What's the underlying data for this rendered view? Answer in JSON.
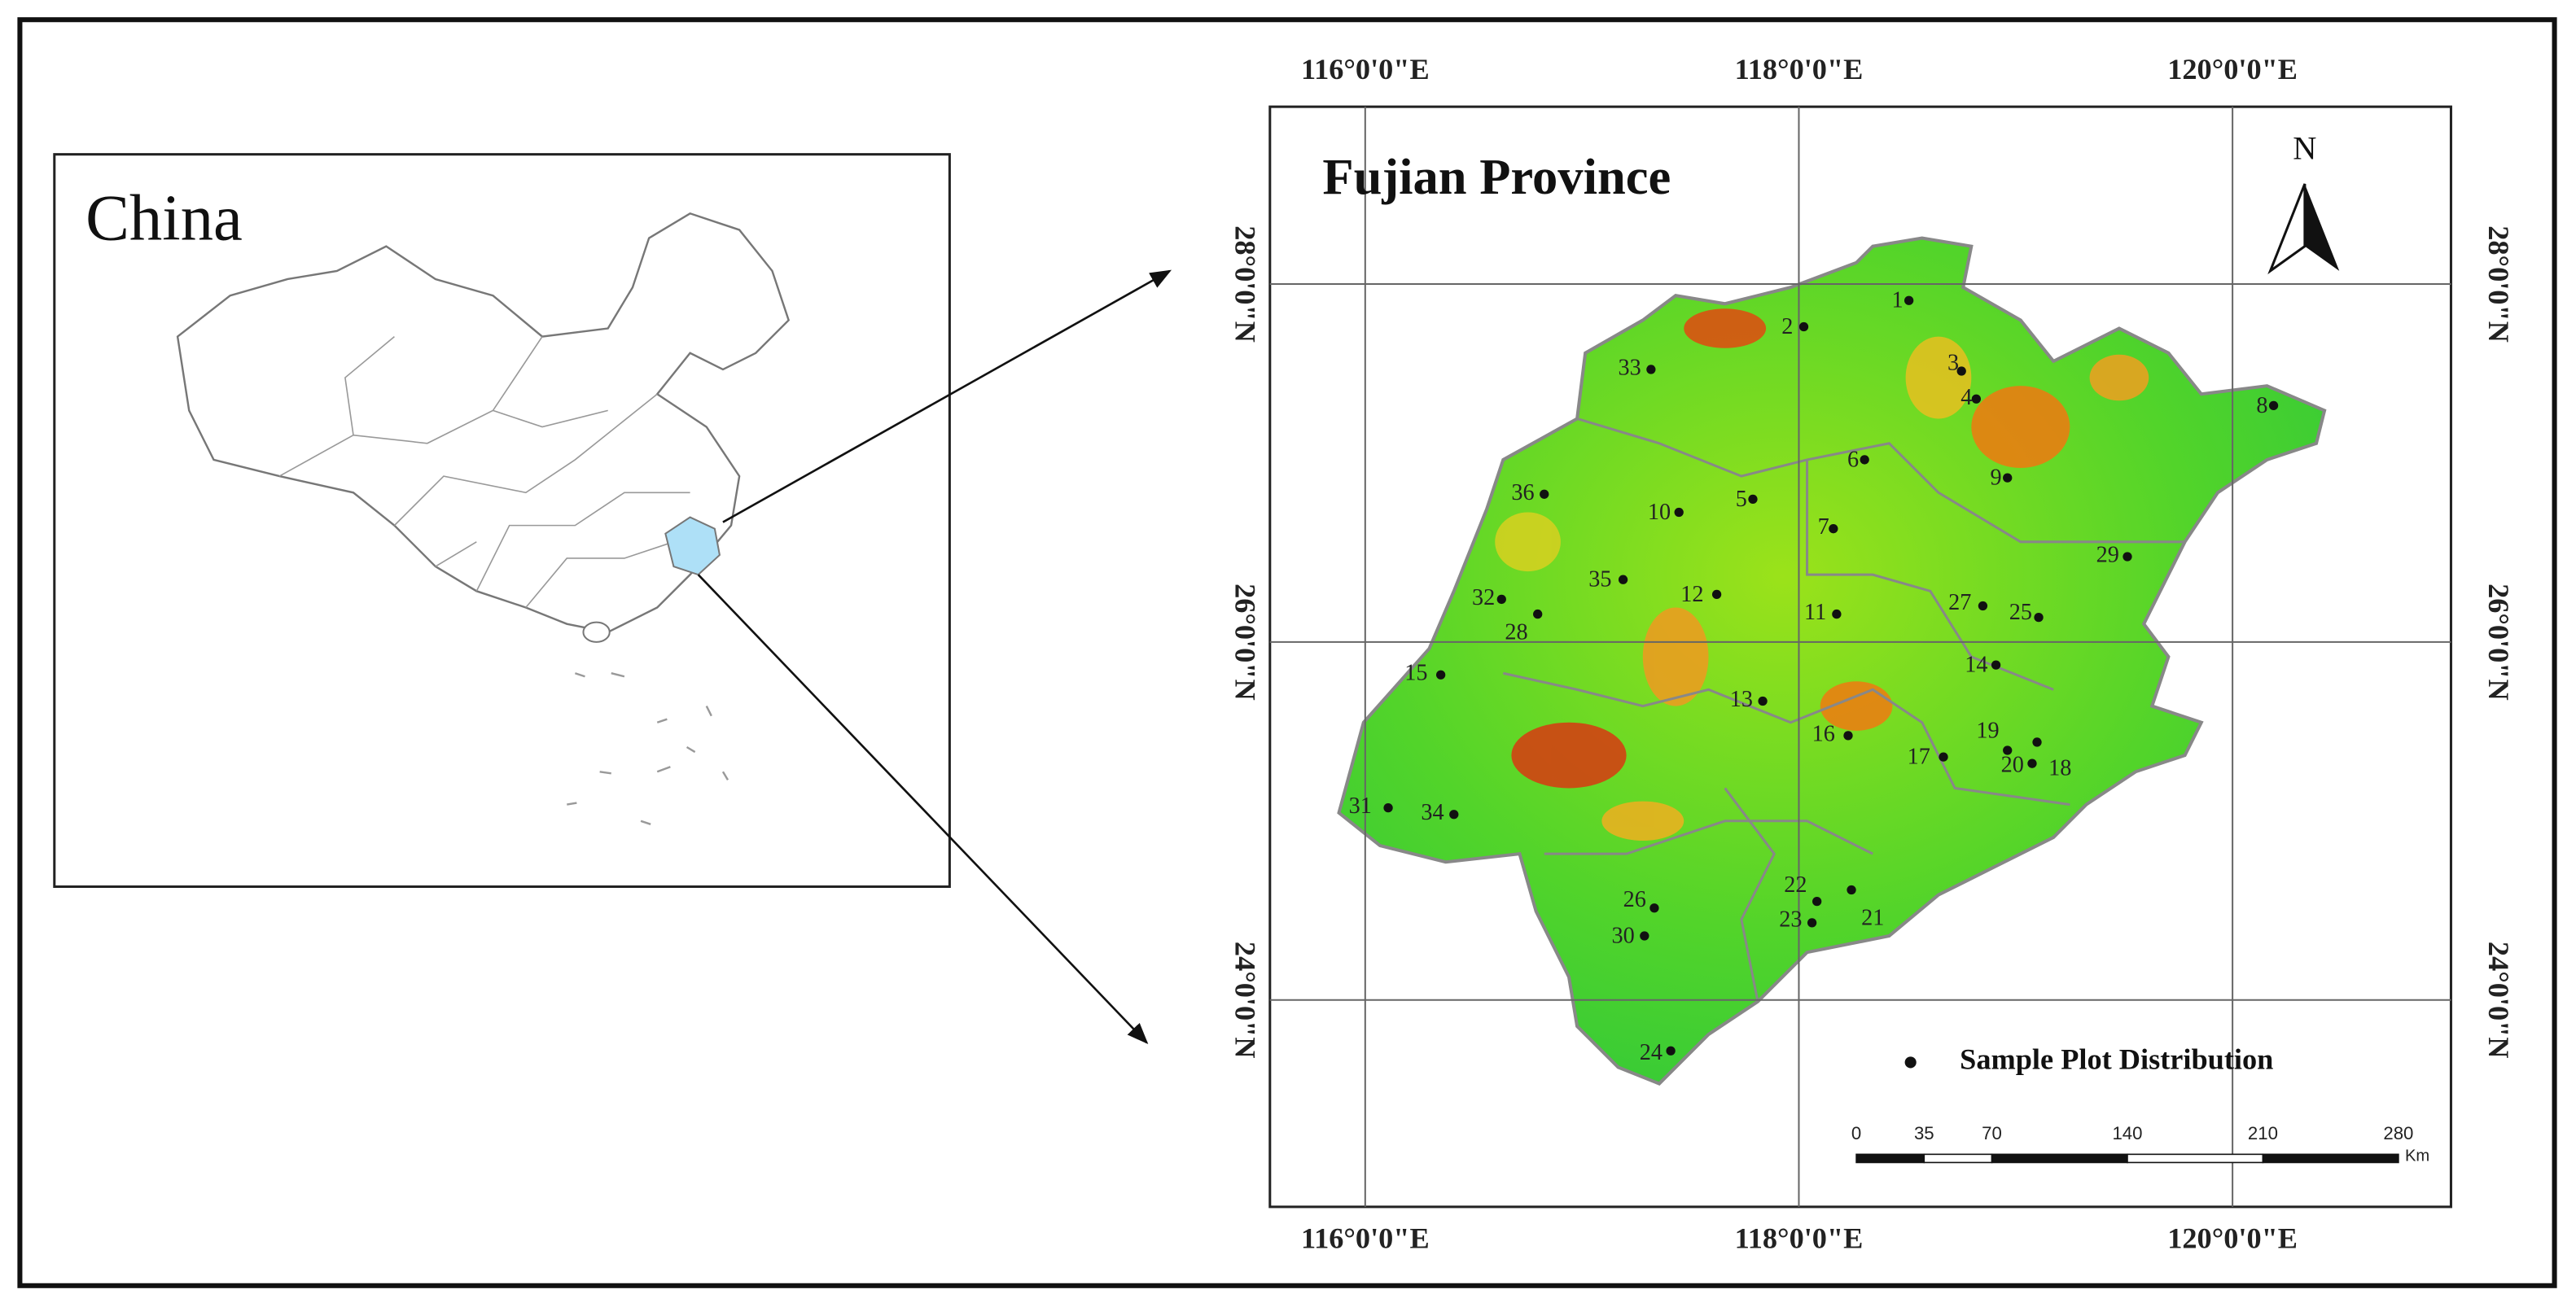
{
  "inset": {
    "title": "China"
  },
  "map": {
    "title": "Fujian Province",
    "north": "N",
    "longitudes": [
      {
        "value": 116,
        "label": "116°0'0\"E"
      },
      {
        "value": 118,
        "label": "118°0'0\"E"
      },
      {
        "value": 120,
        "label": "120°0'0\"E"
      }
    ],
    "latitudes": [
      {
        "value": 28,
        "label": "28°0'0\"N"
      },
      {
        "value": 26,
        "label": "26°0'0\"N"
      },
      {
        "value": 24,
        "label": "24°0'0\"N"
      }
    ],
    "sample_plots": [
      "1",
      "2",
      "3",
      "4",
      "5",
      "6",
      "7",
      "8",
      "9",
      "10",
      "11",
      "12",
      "13",
      "14",
      "15",
      "16",
      "17",
      "18",
      "19",
      "20",
      "21",
      "22",
      "23",
      "24",
      "25",
      "26",
      "27",
      "28",
      "29",
      "30",
      "31",
      "32",
      "33",
      "34",
      "35",
      "36"
    ],
    "legend": "Sample Plot Distribution",
    "scale_bar": {
      "ticks": [
        0,
        35,
        70,
        140,
        210,
        280
      ],
      "unit": "Km"
    }
  }
}
